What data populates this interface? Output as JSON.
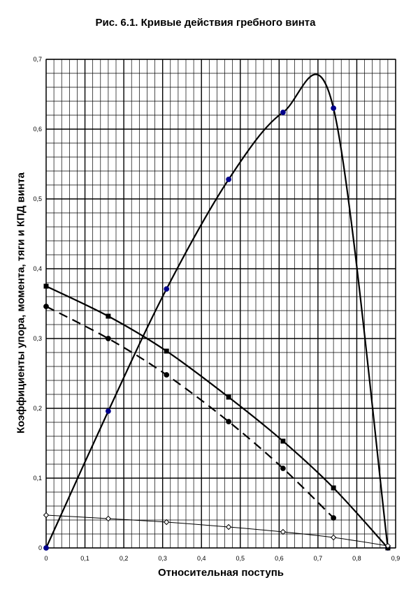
{
  "chart_data": {
    "type": "line",
    "title": "Рис. 6.1. Кривые действия гребного винта",
    "xlabel": "Относительная поступь",
    "ylabel": "Коэффициенты упора, момента, тяги и КПД винта",
    "xlim": [
      0,
      0.9
    ],
    "ylim": [
      0,
      0.7
    ],
    "x_ticks": [
      "0",
      "0,1",
      "0,2",
      "0,3",
      "0,4",
      "0,5",
      "0,6",
      "0,7",
      "0,8",
      "0,9"
    ],
    "y_ticks": [
      "0",
      "0,1",
      "0,2",
      "0,3",
      "0,4",
      "0,5",
      "0,6",
      "0,7"
    ],
    "grid": true,
    "series": [
      {
        "style": "solid",
        "marker": "circle",
        "color": "#00008b",
        "x": [
          0,
          0.16,
          0.31,
          0.47,
          0.61,
          0.74,
          0.88
        ],
        "y": [
          0,
          0.196,
          0.371,
          0.528,
          0.624,
          0.63,
          0
        ]
      },
      {
        "style": "solid",
        "marker": "square",
        "color": "#000000",
        "x": [
          0,
          0.16,
          0.31,
          0.47,
          0.61,
          0.74,
          0.88
        ],
        "y": [
          0.375,
          0.332,
          0.282,
          0.216,
          0.153,
          0.086,
          0
        ]
      },
      {
        "style": "dashed",
        "marker": "circle",
        "color": "#000000",
        "x": [
          0,
          0.16,
          0.31,
          0.47,
          0.61,
          0.74
        ],
        "y": [
          0.346,
          0.3,
          0.248,
          0.181,
          0.114,
          0.043
        ]
      },
      {
        "style": "thin",
        "marker": "diamond",
        "color": "#000000",
        "x": [
          0,
          0.16,
          0.31,
          0.47,
          0.61,
          0.74,
          0.88
        ],
        "y": [
          0.047,
          0.042,
          0.037,
          0.03,
          0.023,
          0.015,
          0.003
        ]
      }
    ]
  }
}
